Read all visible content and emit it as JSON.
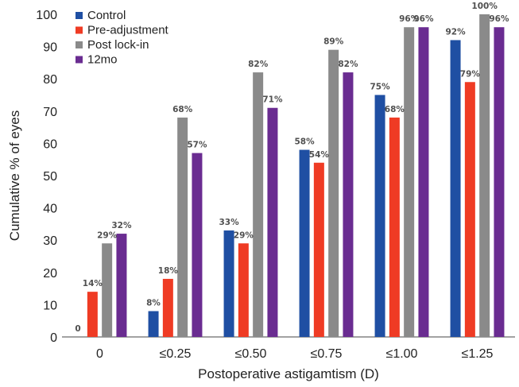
{
  "chart_data": {
    "type": "bar",
    "xlabel": "Postoperative astigamtism (D)",
    "ylabel": "Cumulative % of eyes",
    "ylim": [
      0,
      100
    ],
    "yticks": [
      0,
      10,
      20,
      30,
      40,
      50,
      60,
      70,
      80,
      90,
      100
    ],
    "grid": false,
    "legend_position": "top-left",
    "categories": [
      "0",
      "≤0.25",
      "≤0.50",
      "≤0.75",
      "≤1.00",
      "≤1.25"
    ],
    "series": [
      {
        "name": "Control",
        "color": "#1f4fa3",
        "values": [
          0,
          8,
          33,
          58,
          75,
          92
        ],
        "labels": [
          "0",
          "8%",
          "33%",
          "58%",
          "75%",
          "92%"
        ]
      },
      {
        "name": "Pre-adjustment",
        "color": "#ef3b24",
        "values": [
          14,
          18,
          29,
          54,
          68,
          79
        ],
        "labels": [
          "14%",
          "18%",
          "29%",
          "54%",
          "68%",
          "79%"
        ]
      },
      {
        "name": "Post lock-in",
        "color": "#8a8a8a",
        "values": [
          29,
          68,
          82,
          89,
          96,
          100
        ],
        "labels": [
          "29%",
          "68%",
          "82%",
          "89%",
          "96%",
          "100%"
        ]
      },
      {
        "name": "12mo",
        "color": "#6a2c91",
        "values": [
          32,
          57,
          71,
          82,
          96,
          96
        ],
        "labels": [
          "32%",
          "57%",
          "71%",
          "82%",
          "96%",
          "96%"
        ]
      }
    ]
  }
}
